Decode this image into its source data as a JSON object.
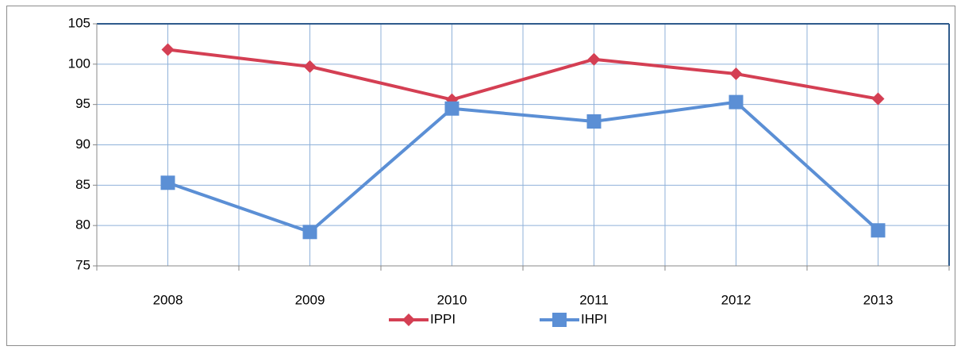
{
  "chart_data": {
    "type": "line",
    "categories": [
      "2008",
      "2009",
      "2010",
      "2011",
      "2012",
      "2013"
    ],
    "series": [
      {
        "name": "IPPI",
        "color": "#d43f53",
        "marker": "diamond",
        "values": [
          101.8,
          99.7,
          95.6,
          100.6,
          98.8,
          95.7
        ]
      },
      {
        "name": "IHPI",
        "color": "#5b8fd5",
        "marker": "square",
        "values": [
          85.3,
          79.2,
          94.5,
          92.9,
          95.3,
          79.4
        ]
      }
    ],
    "ylim": [
      75,
      105
    ],
    "yticks": [
      75,
      80,
      85,
      90,
      95,
      100,
      105
    ],
    "grid": true,
    "legend": "bottom"
  }
}
